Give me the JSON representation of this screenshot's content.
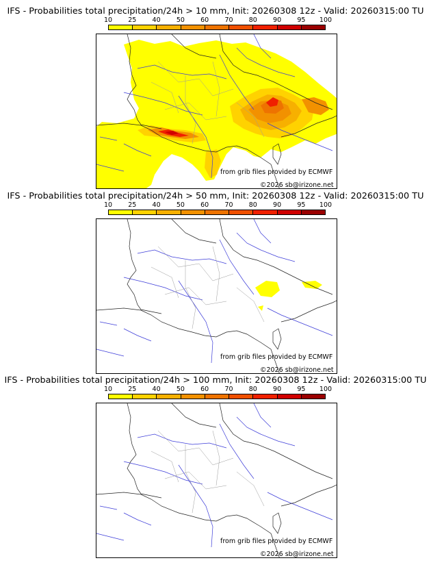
{
  "colorbar": {
    "ticks": [
      "10",
      "25",
      "40",
      "50",
      "60",
      "70",
      "80",
      "90",
      "95",
      "100"
    ],
    "colors": [
      "#ffff00",
      "#ffd200",
      "#f7b000",
      "#f29100",
      "#ee7300",
      "#f05000",
      "#f02000",
      "#d00000",
      "#9a0000",
      "#5a0000"
    ]
  },
  "credits": {
    "source": "from grib files provided by ECMWF",
    "copyright": "©2026 sb@irizone.net"
  },
  "panels": [
    {
      "title": "IFS - Probabilities total precipitation/24h > 10 mm, Init: 20260308 12z - Valid: 20260315:00 TU"
    },
    {
      "title": "IFS - Probabilities total precipitation/24h > 50 mm, Init: 20260308 12z - Valid: 20260315:00 TU"
    },
    {
      "title": "IFS - Probabilities total precipitation/24h > 100 mm, Init: 20260308 12z - Valid: 20260315:00 TU"
    }
  ]
}
